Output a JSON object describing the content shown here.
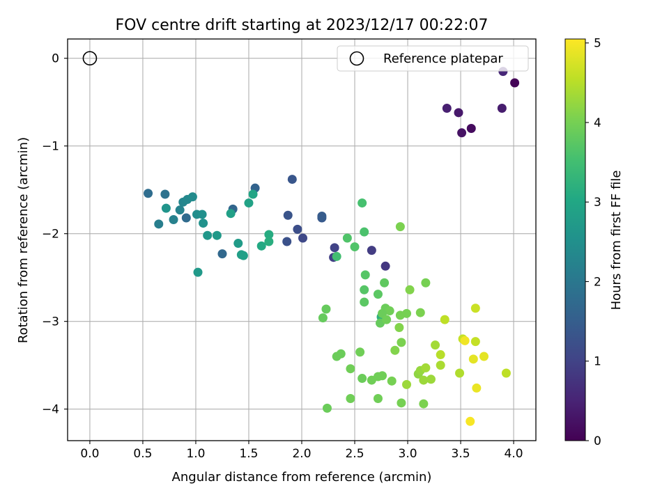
{
  "chart_data": {
    "type": "scatter",
    "title": "FOV centre drift starting at 2023/12/17 00:22:07",
    "xlabel": "Angular distance from reference (arcmin)",
    "ylabel": "Rotation from reference (arcmin)",
    "xlim": [
      -0.21,
      4.21
    ],
    "ylim": [
      -4.36,
      0.22
    ],
    "xticks": [
      0.0,
      0.5,
      1.0,
      1.5,
      2.0,
      2.5,
      3.0,
      3.5,
      4.0
    ],
    "xtick_labels": [
      "0.0",
      "0.5",
      "1.0",
      "1.5",
      "2.0",
      "2.5",
      "3.0",
      "3.5",
      "4.0"
    ],
    "yticks": [
      0,
      -1,
      -2,
      -3,
      -4
    ],
    "ytick_labels": [
      "0",
      "−1",
      "−2",
      "−3",
      "−4"
    ],
    "grid": true,
    "legend": {
      "position": "top-right",
      "label": "Reference platepar"
    },
    "reference_point": {
      "x": 0.0,
      "y": 0.0
    },
    "colorbar": {
      "label": "Hours from first FF file",
      "range": [
        0,
        5.05
      ],
      "ticks": [
        0,
        1,
        2,
        3,
        4,
        5
      ],
      "tick_labels": [
        "0",
        "1",
        "2",
        "3",
        "4",
        "5"
      ],
      "colormap": "viridis"
    },
    "series": [
      {
        "points": [
          {
            "x": 4.01,
            "y": -0.28,
            "c": 0.05
          },
          {
            "x": 3.6,
            "y": -0.8,
            "c": 0.15
          },
          {
            "x": 3.51,
            "y": -0.85,
            "c": 0.25
          },
          {
            "x": 3.48,
            "y": -0.62,
            "c": 0.35
          },
          {
            "x": 3.89,
            "y": -0.57,
            "c": 0.4
          },
          {
            "x": 3.37,
            "y": -0.57,
            "c": 0.45
          },
          {
            "x": 3.9,
            "y": -0.15,
            "c": 0.55
          },
          {
            "x": 2.79,
            "y": -2.37,
            "c": 0.8
          },
          {
            "x": 2.66,
            "y": -2.19,
            "c": 0.9
          },
          {
            "x": 2.3,
            "y": -2.27,
            "c": 0.95
          },
          {
            "x": 2.31,
            "y": -2.16,
            "c": 1.0
          },
          {
            "x": 2.01,
            "y": -2.05,
            "c": 1.1
          },
          {
            "x": 1.96,
            "y": -1.95,
            "c": 1.2
          },
          {
            "x": 1.86,
            "y": -2.09,
            "c": 1.25
          },
          {
            "x": 1.87,
            "y": -1.79,
            "c": 1.3
          },
          {
            "x": 1.91,
            "y": -1.38,
            "c": 1.35
          },
          {
            "x": 2.19,
            "y": -1.82,
            "c": 1.4
          },
          {
            "x": 2.19,
            "y": -1.8,
            "c": 1.45
          },
          {
            "x": 1.56,
            "y": -1.48,
            "c": 1.6
          },
          {
            "x": 1.35,
            "y": -1.72,
            "c": 1.65
          },
          {
            "x": 1.25,
            "y": -2.23,
            "c": 1.7
          },
          {
            "x": 0.91,
            "y": -1.82,
            "c": 1.75
          },
          {
            "x": 0.55,
            "y": -1.54,
            "c": 1.8
          },
          {
            "x": 0.71,
            "y": -1.55,
            "c": 1.9
          },
          {
            "x": 0.65,
            "y": -1.89,
            "c": 2.15
          },
          {
            "x": 0.79,
            "y": -1.84,
            "c": 2.2
          },
          {
            "x": 0.85,
            "y": -1.73,
            "c": 2.25
          },
          {
            "x": 0.88,
            "y": -1.64,
            "c": 2.3
          },
          {
            "x": 0.92,
            "y": -1.61,
            "c": 2.35
          },
          {
            "x": 0.97,
            "y": -1.58,
            "c": 2.4
          },
          {
            "x": 1.01,
            "y": -1.78,
            "c": 2.45
          },
          {
            "x": 1.06,
            "y": -1.78,
            "c": 2.5
          },
          {
            "x": 1.07,
            "y": -1.88,
            "c": 2.55
          },
          {
            "x": 0.72,
            "y": -1.71,
            "c": 2.6
          },
          {
            "x": 1.11,
            "y": -2.02,
            "c": 2.65
          },
          {
            "x": 1.2,
            "y": -2.02,
            "c": 2.7
          },
          {
            "x": 1.02,
            "y": -2.44,
            "c": 2.7
          },
          {
            "x": 1.4,
            "y": -2.11,
            "c": 2.75
          },
          {
            "x": 1.43,
            "y": -2.24,
            "c": 2.8
          },
          {
            "x": 1.45,
            "y": -2.25,
            "c": 2.85
          },
          {
            "x": 1.33,
            "y": -1.77,
            "c": 2.85
          },
          {
            "x": 1.5,
            "y": -1.65,
            "c": 2.9
          },
          {
            "x": 1.54,
            "y": -1.55,
            "c": 2.95
          },
          {
            "x": 1.62,
            "y": -2.14,
            "c": 3.05
          },
          {
            "x": 1.69,
            "y": -2.01,
            "c": 3.1
          },
          {
            "x": 1.69,
            "y": -2.09,
            "c": 3.15
          },
          {
            "x": 2.75,
            "y": -2.95,
            "c": 3.2
          },
          {
            "x": 2.33,
            "y": -2.26,
            "c": 3.5
          },
          {
            "x": 2.57,
            "y": -1.65,
            "c": 3.55
          },
          {
            "x": 2.59,
            "y": -1.98,
            "c": 3.6
          },
          {
            "x": 2.43,
            "y": -2.05,
            "c": 3.65
          },
          {
            "x": 2.5,
            "y": -2.15,
            "c": 3.65
          },
          {
            "x": 2.6,
            "y": -2.47,
            "c": 3.7
          },
          {
            "x": 2.59,
            "y": -2.64,
            "c": 3.7
          },
          {
            "x": 2.59,
            "y": -2.78,
            "c": 3.75
          },
          {
            "x": 2.72,
            "y": -2.69,
            "c": 3.75
          },
          {
            "x": 2.78,
            "y": -2.56,
            "c": 3.8
          },
          {
            "x": 2.93,
            "y": -1.92,
            "c": 4.05
          },
          {
            "x": 2.23,
            "y": -2.86,
            "c": 3.85
          },
          {
            "x": 2.2,
            "y": -2.96,
            "c": 3.85
          },
          {
            "x": 2.74,
            "y": -3.02,
            "c": 3.85
          },
          {
            "x": 2.79,
            "y": -2.85,
            "c": 3.9
          },
          {
            "x": 2.83,
            "y": -2.88,
            "c": 3.95
          },
          {
            "x": 2.76,
            "y": -2.91,
            "c": 3.9
          },
          {
            "x": 2.8,
            "y": -2.98,
            "c": 3.95
          },
          {
            "x": 2.93,
            "y": -2.93,
            "c": 4.0
          },
          {
            "x": 2.99,
            "y": -2.91,
            "c": 4.0
          },
          {
            "x": 3.12,
            "y": -2.9,
            "c": 4.05
          },
          {
            "x": 3.02,
            "y": -2.64,
            "c": 4.1
          },
          {
            "x": 3.17,
            "y": -2.56,
            "c": 4.0
          },
          {
            "x": 2.92,
            "y": -3.07,
            "c": 4.1
          },
          {
            "x": 2.94,
            "y": -3.24,
            "c": 4.05
          },
          {
            "x": 2.88,
            "y": -3.33,
            "c": 4.1
          },
          {
            "x": 2.37,
            "y": -3.37,
            "c": 3.9
          },
          {
            "x": 2.33,
            "y": -3.4,
            "c": 3.9
          },
          {
            "x": 2.55,
            "y": -3.35,
            "c": 3.95
          },
          {
            "x": 2.46,
            "y": -3.54,
            "c": 3.95
          },
          {
            "x": 2.57,
            "y": -3.65,
            "c": 3.9
          },
          {
            "x": 2.66,
            "y": -3.67,
            "c": 3.95
          },
          {
            "x": 2.72,
            "y": -3.63,
            "c": 3.95
          },
          {
            "x": 2.76,
            "y": -3.62,
            "c": 3.95
          },
          {
            "x": 2.85,
            "y": -3.68,
            "c": 4.0
          },
          {
            "x": 2.24,
            "y": -3.99,
            "c": 3.9
          },
          {
            "x": 2.46,
            "y": -3.88,
            "c": 3.95
          },
          {
            "x": 2.72,
            "y": -3.88,
            "c": 3.95
          },
          {
            "x": 2.94,
            "y": -3.93,
            "c": 4.0
          },
          {
            "x": 3.15,
            "y": -3.94,
            "c": 4.05
          },
          {
            "x": 2.99,
            "y": -3.72,
            "c": 4.3
          },
          {
            "x": 3.1,
            "y": -3.6,
            "c": 4.2
          },
          {
            "x": 3.12,
            "y": -3.56,
            "c": 4.25
          },
          {
            "x": 3.15,
            "y": -3.67,
            "c": 4.3
          },
          {
            "x": 3.17,
            "y": -3.53,
            "c": 4.35
          },
          {
            "x": 3.22,
            "y": -3.66,
            "c": 4.3
          },
          {
            "x": 3.26,
            "y": -3.27,
            "c": 4.35
          },
          {
            "x": 3.31,
            "y": -3.38,
            "c": 4.5
          },
          {
            "x": 3.31,
            "y": -3.5,
            "c": 4.4
          },
          {
            "x": 3.35,
            "y": -2.98,
            "c": 4.55
          },
          {
            "x": 3.49,
            "y": -3.59,
            "c": 4.45
          },
          {
            "x": 3.52,
            "y": -3.2,
            "c": 4.6
          },
          {
            "x": 3.54,
            "y": -3.22,
            "c": 4.95
          },
          {
            "x": 3.62,
            "y": -3.43,
            "c": 4.85
          },
          {
            "x": 3.64,
            "y": -2.85,
            "c": 4.65
          },
          {
            "x": 3.64,
            "y": -3.23,
            "c": 4.6
          },
          {
            "x": 3.65,
            "y": -3.76,
            "c": 4.9
          },
          {
            "x": 3.72,
            "y": -3.4,
            "c": 4.85
          },
          {
            "x": 3.59,
            "y": -4.14,
            "c": 5.0
          },
          {
            "x": 3.93,
            "y": -3.59,
            "c": 4.55
          }
        ]
      }
    ]
  }
}
